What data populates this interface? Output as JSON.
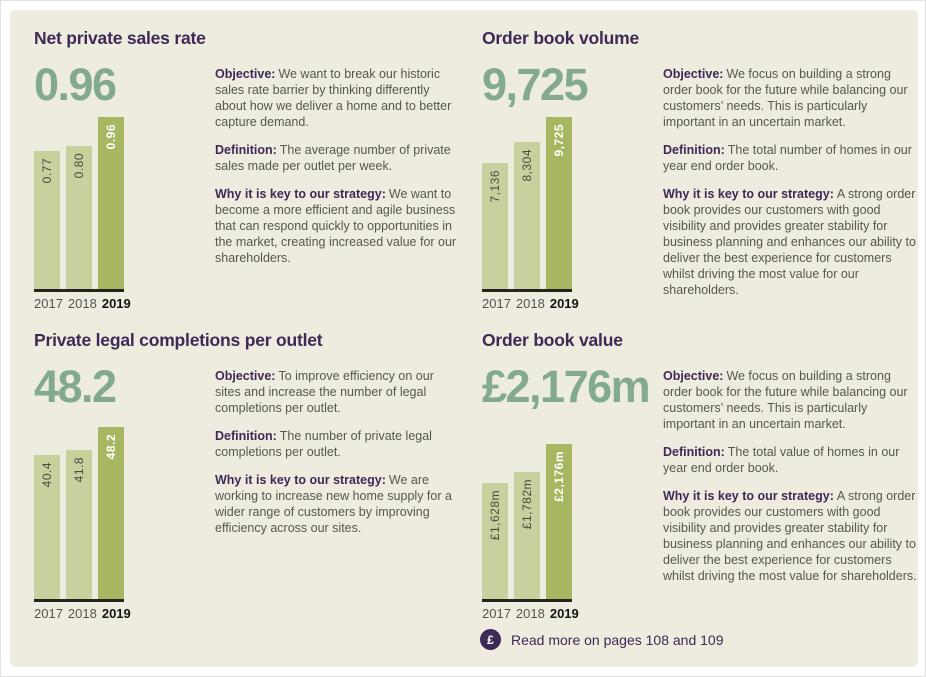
{
  "colors": {
    "purple": "#3e2957",
    "green": "#83aa8f",
    "bar-light": "#c9cf9d",
    "bar-dark": "#a7b660",
    "body-text": "#56574f",
    "panel-bg": "#edecde",
    "baseline": "#26241f"
  },
  "read_more": {
    "icon": "£",
    "text": "Read more on pages 108 and 109"
  },
  "kpis": [
    {
      "title": "Net private sales rate",
      "headline_value": "0.96",
      "objective_label": "Objective:",
      "objective": "We want to break our historic sales rate barrier by thinking differently about how we deliver a home and to better capture demand.",
      "definition_label": "Definition:",
      "definition": "The average number of private sales made per outlet per week.",
      "strategy_label": "Why it is key to our strategy:",
      "strategy": "We want to become a more efficient and agile business that can respond quickly to opportunities in the market, creating increased value for our shareholders."
    },
    {
      "title": "Order book volume",
      "headline_value": "9,725",
      "objective_label": "Objective:",
      "objective": "We focus on building a strong order book for the future while balancing our customers’ needs. This is particularly important in an uncertain market.",
      "definition_label": "Definition:",
      "definition": "The total number of homes in our year end order book.",
      "strategy_label": "Why it is key to our strategy:",
      "strategy": "A strong order book provides our customers with good visibility and provides greater stability for business planning and enhances our ability to deliver the best experience for customers whilst driving the most value for our shareholders."
    },
    {
      "title": "Private legal completions per outlet",
      "headline_value": "48.2",
      "objective_label": "Objective:",
      "objective": "To improve efficiency on our sites and increase the number of legal completions per outlet.",
      "definition_label": "Definition:",
      "definition": "The number of private legal completions per outlet.",
      "strategy_label": "Why it is key to our strategy:",
      "strategy": "We are working to increase new home supply for a wider range of customers by improving efficiency across our sites."
    },
    {
      "title": "Order book value",
      "headline_value": "£2,176m",
      "objective_label": "Objective:",
      "objective": "We focus on building a strong order book for the future while balancing our customers’ needs. This is particularly important in an uncertain market.",
      "definition_label": "Definition:",
      "definition": "The total value of homes in our year end order book.",
      "strategy_label": "Why it is key to our strategy:",
      "strategy": "A strong order book provides our customers with good visibility and provides greater stability for business planning and enhances our ability to deliver the best experience for customers whilst driving the most value for shareholders."
    }
  ],
  "chart_data": [
    {
      "type": "bar",
      "title": "Net private sales rate",
      "categories": [
        "2017",
        "2018",
        "2019"
      ],
      "values": [
        0.77,
        0.8,
        0.96
      ],
      "bar_labels": [
        "0.77",
        "0.80",
        "0.96"
      ],
      "highlighted_category": "2019",
      "ylim": [
        0,
        0.96
      ],
      "grid": false,
      "legend": "none"
    },
    {
      "type": "bar",
      "title": "Order book volume",
      "categories": [
        "2017",
        "2018",
        "2019"
      ],
      "values": [
        7136,
        8304,
        9725
      ],
      "bar_labels": [
        "7,136",
        "8,304",
        "9,725"
      ],
      "highlighted_category": "2019",
      "ylim": [
        0,
        9725
      ],
      "grid": false,
      "legend": "none"
    },
    {
      "type": "bar",
      "title": "Private legal completions per outlet",
      "categories": [
        "2017",
        "2018",
        "2019"
      ],
      "values": [
        40.4,
        41.8,
        48.2
      ],
      "bar_labels": [
        "40.4",
        "41.8",
        "48.2"
      ],
      "highlighted_category": "2019",
      "ylim": [
        0,
        48.2
      ],
      "grid": false,
      "legend": "none"
    },
    {
      "type": "bar",
      "title": "Order book value (£m)",
      "categories": [
        "2017",
        "2018",
        "2019"
      ],
      "values": [
        1628,
        1782,
        2176
      ],
      "bar_labels": [
        "£1,628m",
        "£1,782m",
        "£2,176m"
      ],
      "highlighted_category": "2019",
      "ylim": [
        0,
        2176
      ],
      "grid": false,
      "legend": "none"
    }
  ]
}
